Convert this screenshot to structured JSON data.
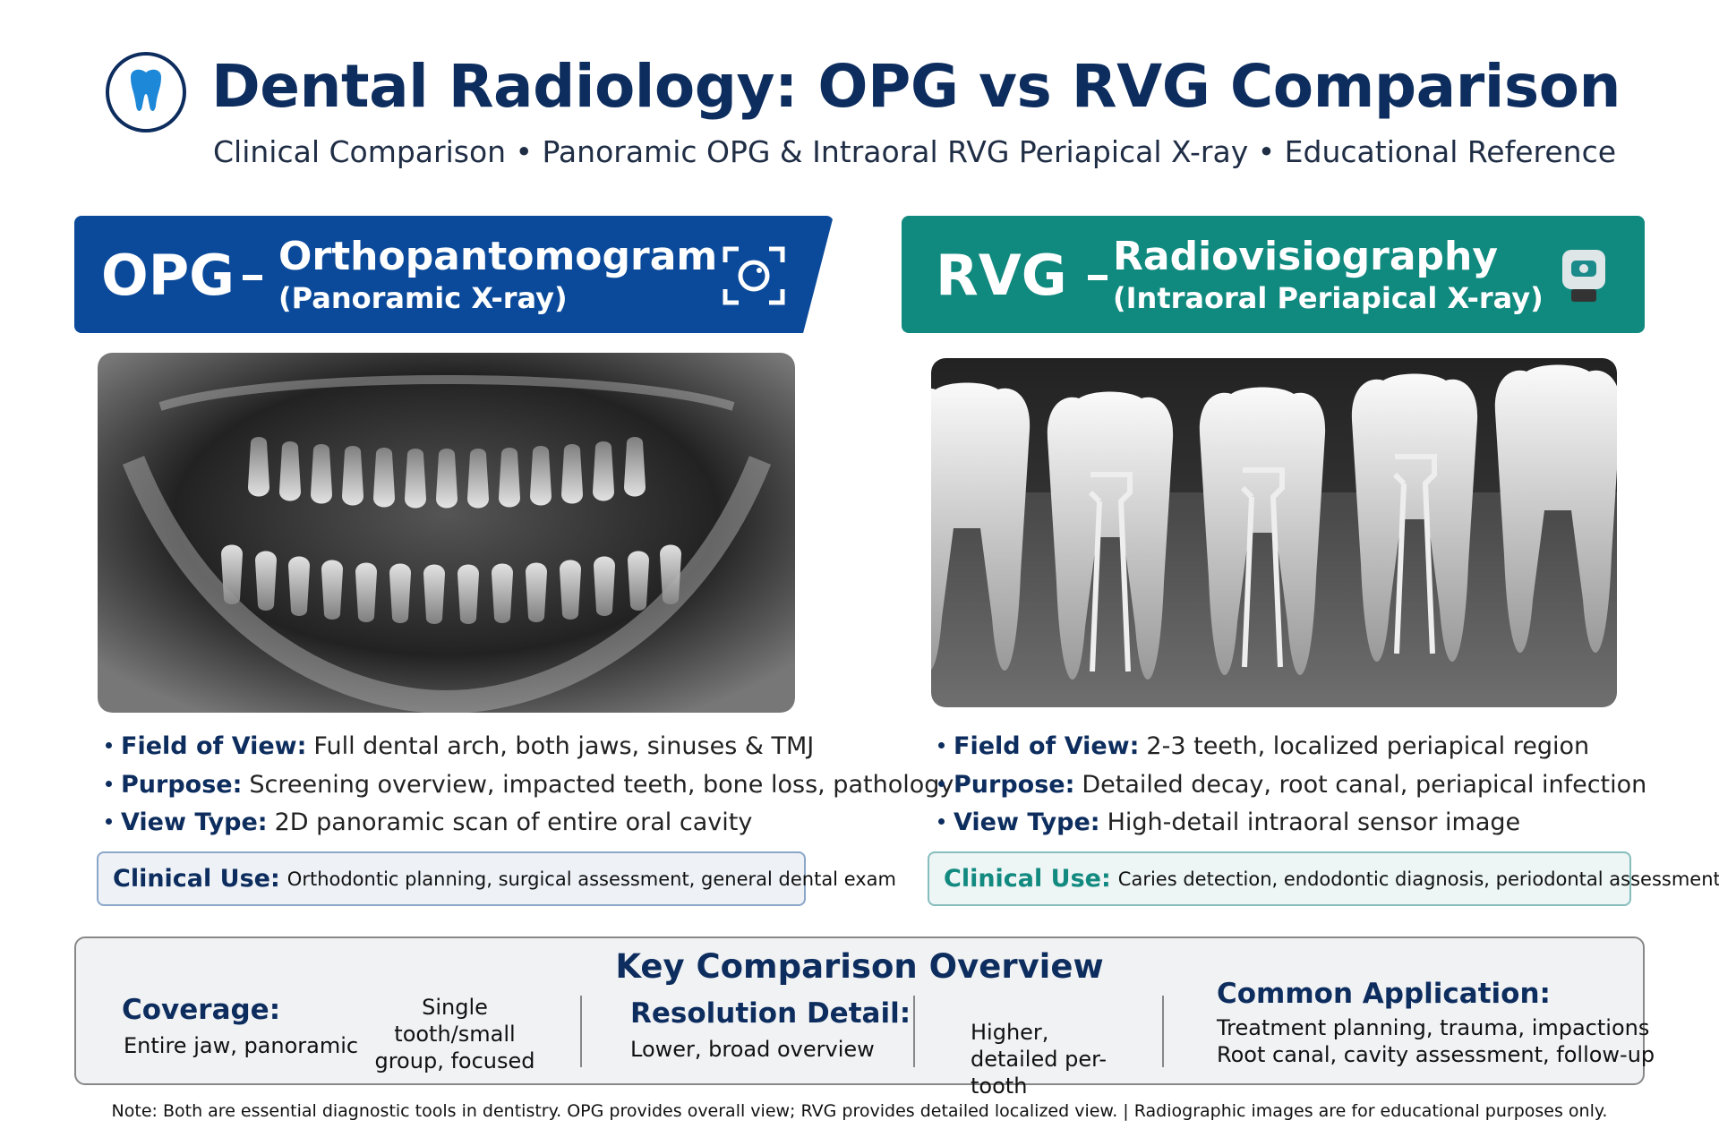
{
  "header": {
    "title": "Dental Radiology: OPG vs RVG Comparison",
    "subtitle": "Clinical Comparison • Panoramic OPG & Intraoral RVG Periapical X-ray • Educational Reference"
  },
  "panels": [
    {
      "code": "OPG",
      "name": "Orthopantomogram",
      "subname": "(Panoramic X-ray)",
      "bullets": [
        {
          "label": "Field of View:",
          "text": "Full dental arch, both jaws, sinuses & TMJ"
        },
        {
          "label": "Purpose:",
          "text": "Screening overview, impacted teeth, bone loss, pathology"
        },
        {
          "label": "View Type:",
          "text": "2D panoramic scan of entire oral cavity"
        }
      ],
      "clinical": {
        "label": "Clinical Use:",
        "text": "Orthodontic planning, surgical assessment, general dental exam"
      }
    },
    {
      "code": "RVG",
      "name": "Radiovisiography",
      "subname": "(Intraoral Periapical X-ray)",
      "bullets": [
        {
          "label": "Field of View:",
          "text": "2-3 teeth, localized periapical region"
        },
        {
          "label": "Purpose:",
          "text": "Detailed decay, root canal, periapical infection"
        },
        {
          "label": "View Type:",
          "text": "High-detail intraoral sensor image"
        }
      ],
      "clinical": {
        "label": "Clinical Use:",
        "text": "Caries detection, endodontic diagnosis, periodontal assessment"
      }
    }
  ],
  "overview": {
    "title": "Key Comparison Overview",
    "items": [
      {
        "label": "Coverage:",
        "opg": "Entire jaw, panoramic",
        "rvg": "Single tooth/small group, focused"
      },
      {
        "label": "Resolution Detail:",
        "opg": "Lower, broad overview",
        "rvg": "Higher, detailed per-tooth"
      },
      {
        "label": "Common Application:",
        "opg": "Treatment planning, trauma, impactions",
        "rvg": "Root canal, cavity assessment, follow-up"
      }
    ]
  },
  "footer": "Note: Both are essential diagnostic tools in dentistry. OPG provides overall view; RVG provides detailed localized view. | Radiographic images are for educational purposes only."
}
